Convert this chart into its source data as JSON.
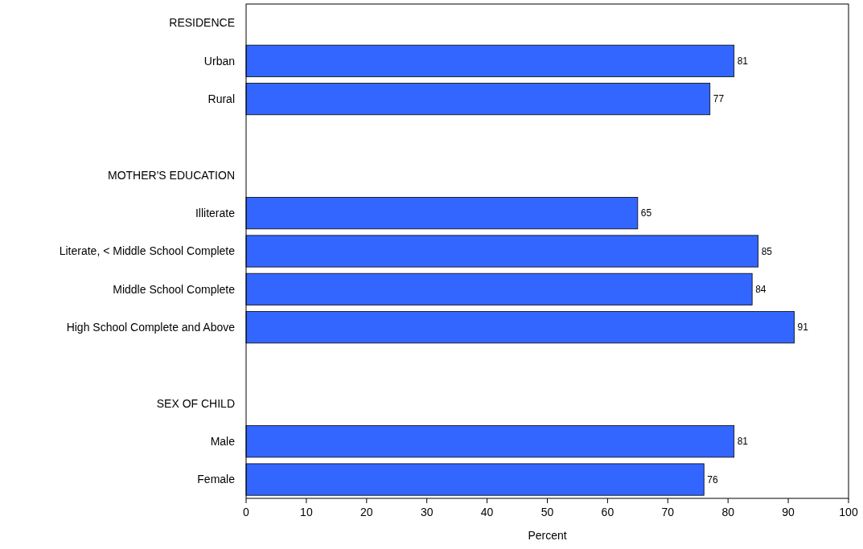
{
  "chart_data": {
    "type": "bar",
    "orientation": "horizontal",
    "xlabel": "Percent",
    "categories": [
      "RESIDENCE",
      "Urban",
      "Rural",
      null,
      "MOTHER'S EDUCATION",
      "Illiterate",
      "Literate, < Middle School Complete",
      "Middle School Complete",
      "High School Complete and Above",
      null,
      "SEX OF CHILD",
      "Male",
      "Female"
    ],
    "values": [
      null,
      81,
      77,
      null,
      null,
      65,
      85,
      84,
      91,
      null,
      null,
      81,
      76
    ],
    "color": "#3366ff",
    "xlim": [
      0,
      100
    ],
    "xticks": [
      0,
      10,
      20,
      30,
      40,
      50,
      60,
      70,
      80,
      90,
      100
    ],
    "data_labels": true,
    "grid": false
  }
}
